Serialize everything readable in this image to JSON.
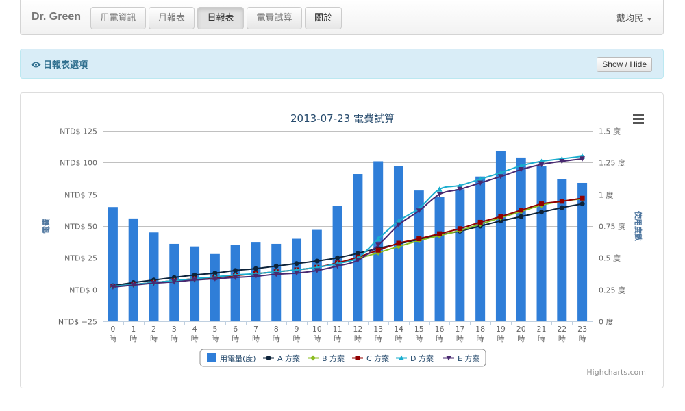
{
  "navbar": {
    "brand": "Dr. Green",
    "tabs": [
      {
        "label": "用電資訊"
      },
      {
        "label": "月報表"
      },
      {
        "label": "日報表"
      },
      {
        "label": "電費試算"
      },
      {
        "label": "關於"
      }
    ],
    "user": "戴均民"
  },
  "options": {
    "title": "日報表選項",
    "toggle_label": "Show / Hide"
  },
  "menu_icon": "hamburger-menu-icon",
  "credit": "Highcharts.com",
  "colors": {
    "bar": "#2f7ed8",
    "A": "#0d233a",
    "B": "#8bbc21",
    "C": "#910000",
    "D": "#1aadce",
    "E": "#492970"
  },
  "chart_data": {
    "type": "bar+line",
    "title": "2013-07-23 電費試算",
    "ylabel_left": "電費",
    "ylabel_right": "使用度數",
    "y_left": {
      "min": -25,
      "max": 125,
      "ticks": [
        -25,
        0,
        25,
        50,
        75,
        100,
        125
      ],
      "tick_labels": [
        "NTD$ −25",
        "NTD$ 0",
        "NTD$ 25",
        "NTD$ 50",
        "NTD$ 75",
        "NTD$ 100",
        "NTD$ 125"
      ]
    },
    "y_right": {
      "min": 0,
      "max": 1.5,
      "ticks": [
        0,
        0.25,
        0.5,
        0.75,
        1,
        1.25,
        1.5
      ],
      "tick_labels": [
        "0 度",
        "0.25 度",
        "0.5 度",
        "0.75 度",
        "1 度",
        "1.25 度",
        "1.5 度"
      ]
    },
    "categories": [
      "0 時",
      "1 時",
      "2 時",
      "3 時",
      "4 時",
      "5 時",
      "6 時",
      "7 時",
      "8 時",
      "9 時",
      "10 時",
      "11 時",
      "12 時",
      "13 時",
      "14 時",
      "15 時",
      "16 時",
      "17 時",
      "18 時",
      "19 時",
      "20 時",
      "21 時",
      "22 時",
      "23 時"
    ],
    "legend": [
      "用電量(度)",
      "A 方案",
      "B 方案",
      "C 方案",
      "D 方案",
      "E 方案"
    ],
    "series": [
      {
        "name": "用電量(度)",
        "type": "column",
        "axis": "right",
        "values": [
          0.9,
          0.81,
          0.7,
          0.61,
          0.59,
          0.53,
          0.6,
          0.62,
          0.61,
          0.65,
          0.72,
          0.91,
          1.16,
          1.26,
          1.22,
          1.03,
          0.98,
          1.04,
          1.14,
          1.34,
          1.29,
          1.22,
          1.12,
          1.09
        ]
      },
      {
        "name": "A 方案",
        "type": "line",
        "axis": "left",
        "marker": "circle",
        "values": [
          3,
          5.5,
          7.5,
          9.5,
          11.5,
          13,
          15,
          16.5,
          18.5,
          20.5,
          22.5,
          25,
          28.5,
          32.5,
          36,
          39.5,
          43,
          46,
          50,
          54,
          57.5,
          61,
          64.5,
          67.5
        ]
      },
      {
        "name": "B 方案",
        "type": "line",
        "axis": "left",
        "marker": "diamond",
        "values": [
          2.5,
          4,
          5.5,
          7,
          8.5,
          9.5,
          11,
          12.5,
          14,
          15.5,
          17.5,
          20.5,
          24.5,
          29,
          34,
          38.5,
          42.5,
          46.5,
          51.5,
          56.5,
          61.5,
          66.5,
          69.5,
          71.5
        ]
      },
      {
        "name": "C 方案",
        "type": "line",
        "axis": "left",
        "marker": "square",
        "values": [
          2.5,
          4,
          5.5,
          7,
          8.5,
          9.5,
          11,
          12.5,
          14,
          15.5,
          17.5,
          21,
          25.5,
          31,
          36.5,
          40,
          44,
          48,
          53,
          57.5,
          62.5,
          67.5,
          69.5,
          72
        ]
      },
      {
        "name": "D 方案",
        "type": "line",
        "axis": "left",
        "marker": "triangle",
        "values": [
          2.5,
          4,
          5.5,
          7,
          8.5,
          10,
          11.5,
          12.5,
          14,
          15.5,
          17.5,
          20.5,
          25,
          40,
          54,
          64,
          79,
          82,
          87,
          92,
          97.5,
          101,
          103,
          105
        ]
      },
      {
        "name": "E 方案",
        "type": "line",
        "axis": "left",
        "marker": "triangle-down",
        "values": [
          2,
          3.5,
          5,
          6,
          7.5,
          8.5,
          9.5,
          10.5,
          12,
          13,
          15,
          18.5,
          23,
          35,
          51,
          62,
          75,
          79,
          84,
          89,
          94.5,
          98.5,
          101,
          103
        ]
      }
    ]
  }
}
